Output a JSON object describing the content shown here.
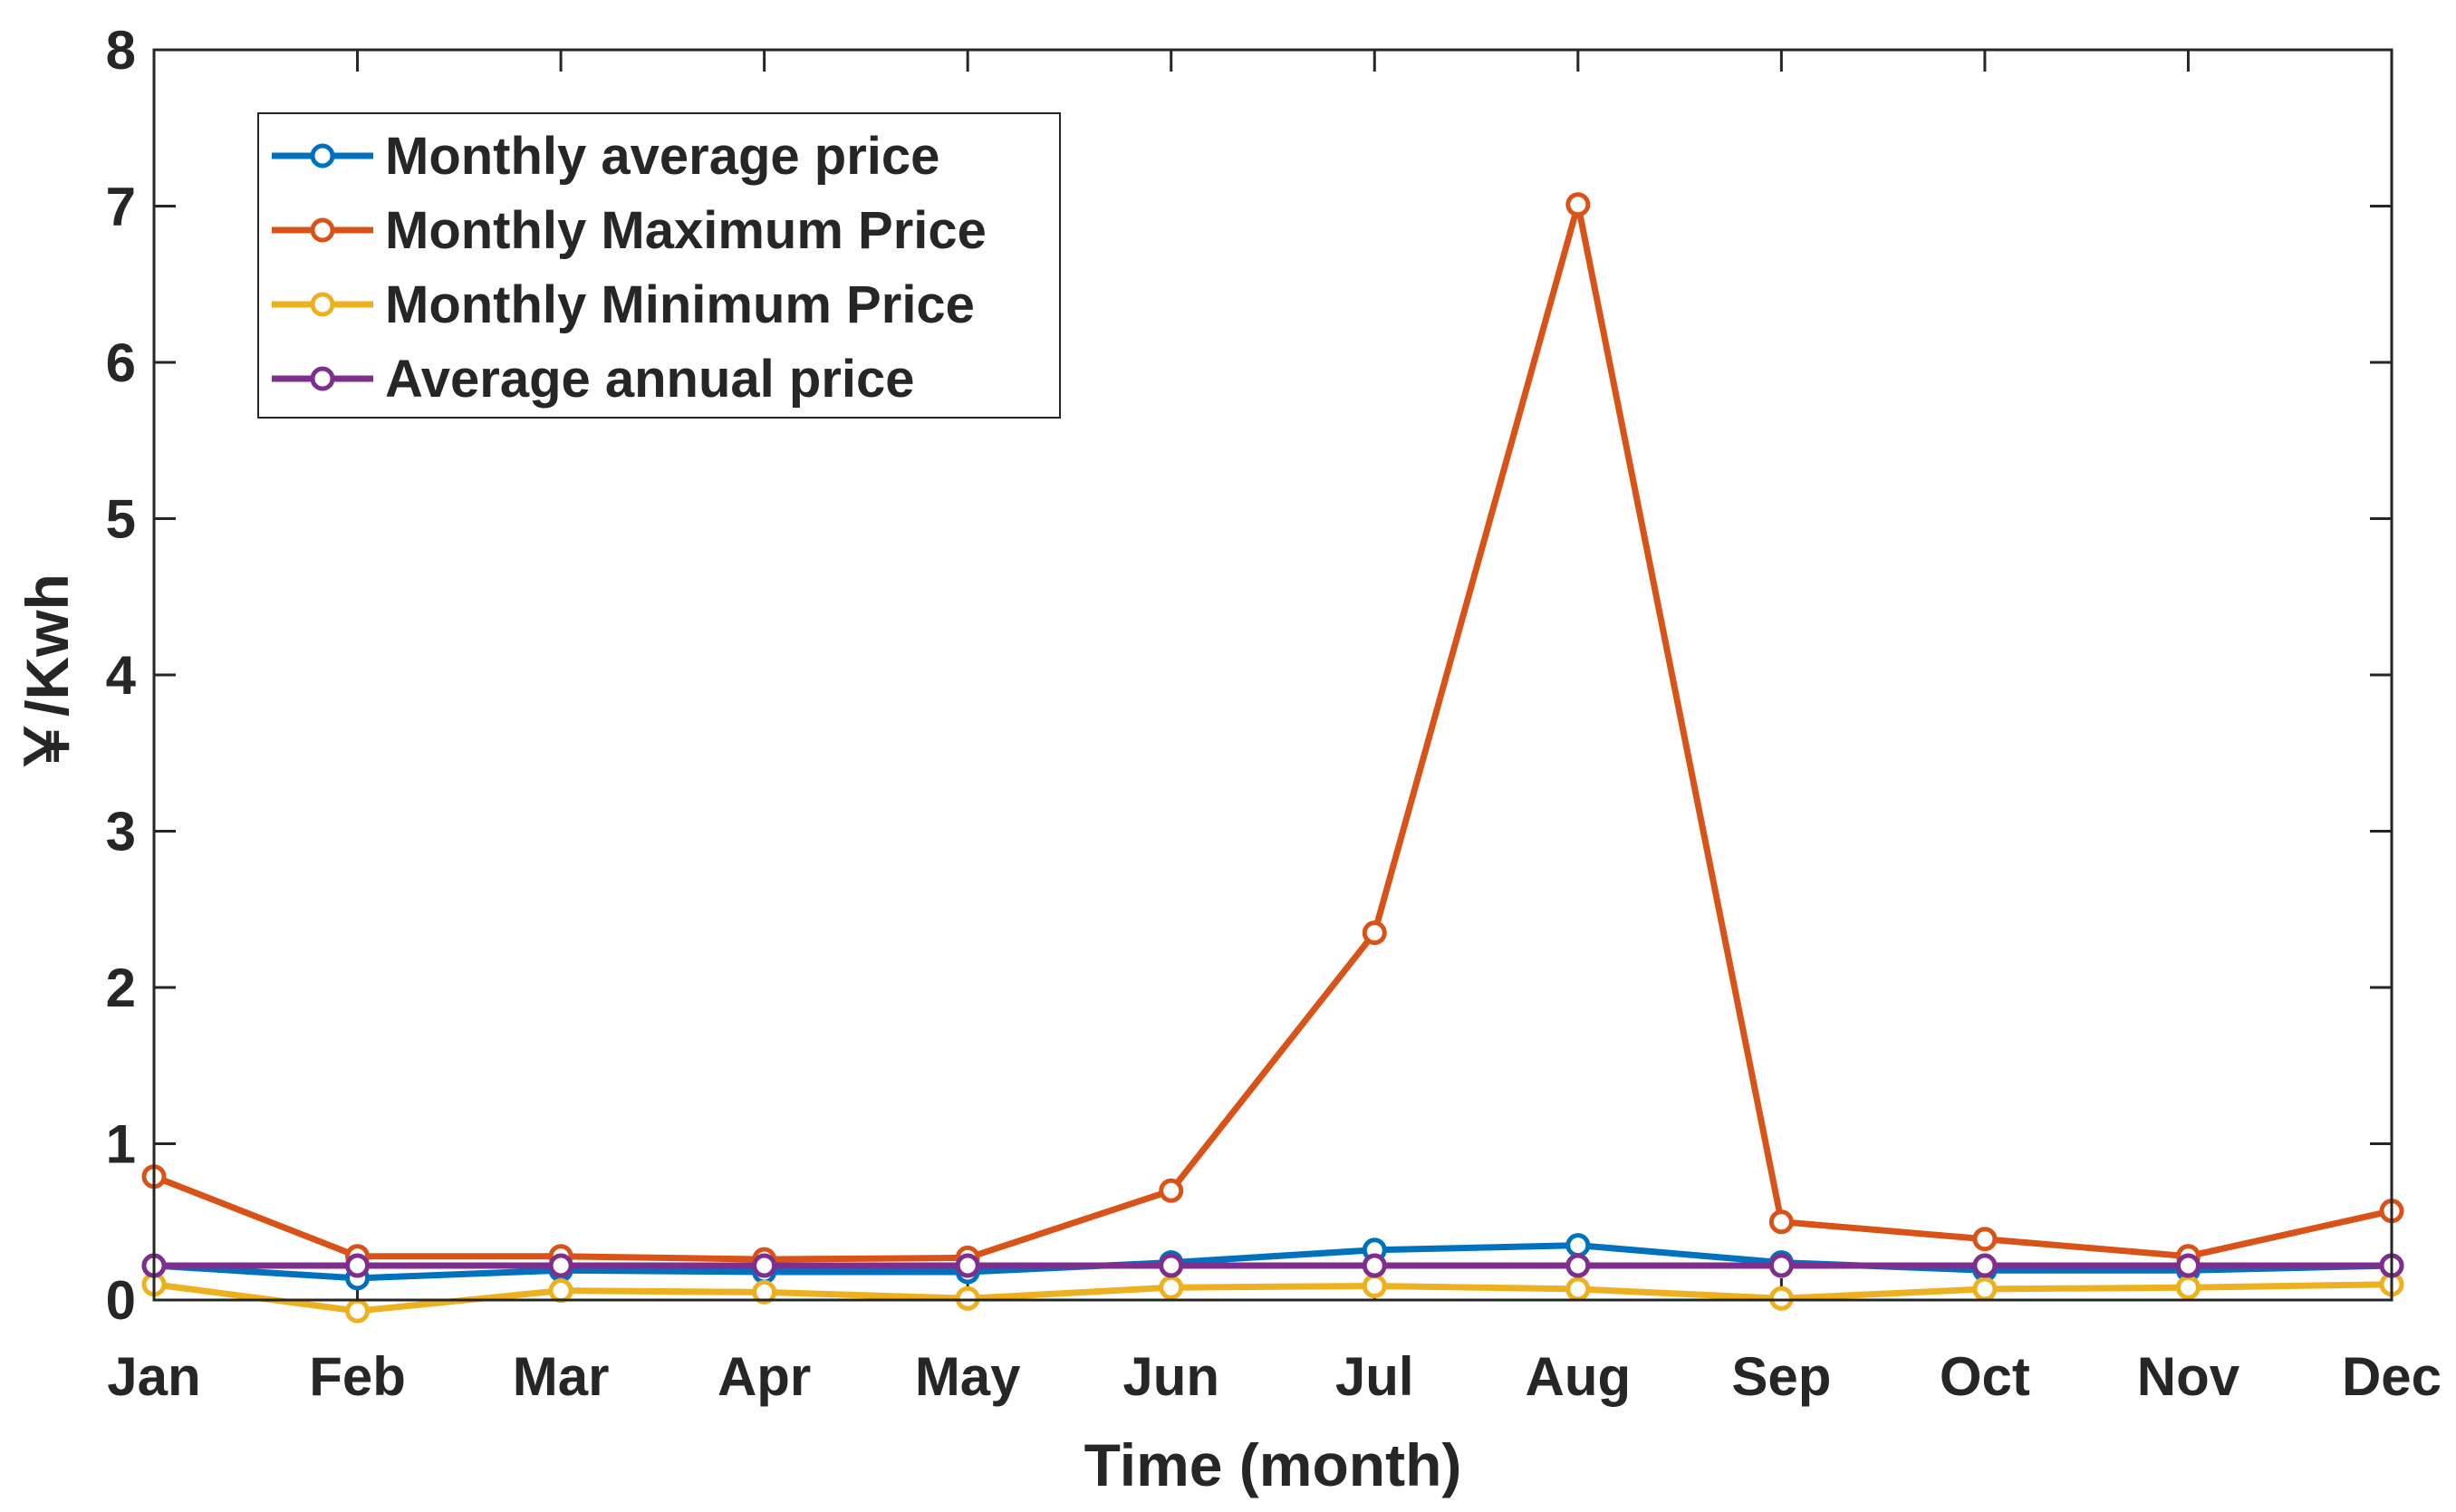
{
  "chart_data": {
    "type": "line",
    "title": "",
    "xlabel": "Time (month)",
    "ylabel": "￥/Kwh",
    "categories": [
      "Jan",
      "Feb",
      "Mar",
      "Apr",
      "May",
      "Jun",
      "Jul",
      "Aug",
      "Sep",
      "Oct",
      "Nov",
      "Dec"
    ],
    "ylim": [
      0,
      8
    ],
    "yticks": [
      "0",
      "1",
      "2",
      "3",
      "4",
      "5",
      "6",
      "7",
      "8"
    ],
    "grid": false,
    "legend_position": "top-left",
    "series": [
      {
        "name": "Monthly average price",
        "color": "#0072BD",
        "values": [
          0.22,
          0.14,
          0.19,
          0.18,
          0.18,
          0.24,
          0.32,
          0.35,
          0.24,
          0.19,
          0.19,
          0.22
        ]
      },
      {
        "name": "Monthly Maximum Price",
        "color": "#D95319",
        "values": [
          0.79,
          0.28,
          0.28,
          0.26,
          0.27,
          0.7,
          2.35,
          7.01,
          0.5,
          0.39,
          0.28,
          0.57
        ]
      },
      {
        "name": "Monthly Minimum Price",
        "color": "#EDB120",
        "values": [
          0.1,
          -0.07,
          0.06,
          0.05,
          0.01,
          0.08,
          0.09,
          0.07,
          0.01,
          0.07,
          0.08,
          0.1
        ]
      },
      {
        "name": "Average annual price",
        "color": "#7E2F8E",
        "values": [
          0.22,
          0.22,
          0.22,
          0.22,
          0.22,
          0.22,
          0.22,
          0.22,
          0.22,
          0.22,
          0.22,
          0.22
        ]
      }
    ]
  }
}
